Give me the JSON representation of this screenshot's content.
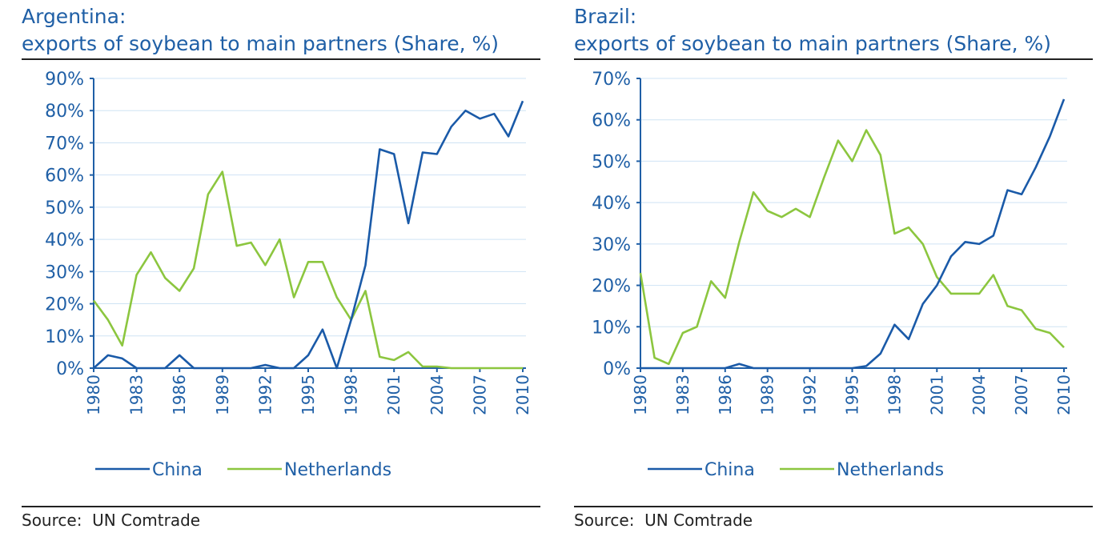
{
  "colors": {
    "china": "#1a5aa8",
    "netherlands": "#8cc63f",
    "text": "#1f5fa6",
    "grid": "#cfe3f4"
  },
  "panels": [
    {
      "title_line1": "Argentina:",
      "title_line2": "exports of soybean to main partners (Share, %)",
      "source": "Source:  UN Comtrade"
    },
    {
      "title_line1": "Brazil:",
      "title_line2": "exports of soybean to main partners (Share, %)",
      "source": "Source:  UN Comtrade"
    }
  ],
  "chart_data": [
    {
      "type": "line",
      "title": "Argentina: exports of soybean to main partners (Share, %)",
      "xlabel": "",
      "ylabel": "",
      "ylim": [
        0,
        90
      ],
      "yticks": [
        "0%",
        "10%",
        "20%",
        "30%",
        "40%",
        "50%",
        "60%",
        "70%",
        "80%",
        "90%"
      ],
      "xticks": [
        "1980",
        "1983",
        "1986",
        "1989",
        "1992",
        "1995",
        "1998",
        "2001",
        "2004",
        "2007",
        "2010"
      ],
      "grid": "horizontal",
      "legend": "bottom",
      "x": [
        1980,
        1981,
        1982,
        1983,
        1984,
        1985,
        1986,
        1987,
        1988,
        1989,
        1990,
        1991,
        1992,
        1993,
        1994,
        1995,
        1996,
        1997,
        1998,
        1999,
        2000,
        2001,
        2002,
        2003,
        2004,
        2005,
        2006,
        2007,
        2008,
        2009,
        2010
      ],
      "series": [
        {
          "name": "China",
          "color": "china",
          "values": [
            0,
            4,
            3,
            0,
            0,
            0,
            4,
            0,
            0,
            0,
            0,
            0,
            1,
            0,
            0,
            4,
            12,
            0,
            15,
            32,
            68,
            66.5,
            45,
            67,
            66.5,
            75,
            80,
            77.5,
            79,
            72,
            83
          ]
        },
        {
          "name": "Netherlands",
          "color": "netherlands",
          "values": [
            21,
            15,
            7,
            29,
            36,
            28,
            24,
            31,
            54,
            61,
            38,
            39,
            32,
            40,
            22,
            33,
            33,
            22,
            15,
            24,
            3.5,
            2.5,
            5,
            0.5,
            0.5,
            0,
            0,
            0,
            0,
            0,
            0
          ]
        }
      ]
    },
    {
      "type": "line",
      "title": "Brazil: exports of soybean to main partners (Share, %)",
      "xlabel": "",
      "ylabel": "",
      "ylim": [
        0,
        70
      ],
      "yticks": [
        "0%",
        "10%",
        "20%",
        "30%",
        "40%",
        "50%",
        "60%",
        "70%"
      ],
      "xticks": [
        "1980",
        "1983",
        "1986",
        "1989",
        "1992",
        "1995",
        "1998",
        "2001",
        "2004",
        "2007",
        "2010"
      ],
      "grid": "horizontal",
      "legend": "bottom",
      "x": [
        1980,
        1981,
        1982,
        1983,
        1984,
        1985,
        1986,
        1987,
        1988,
        1989,
        1990,
        1991,
        1992,
        1993,
        1994,
        1995,
        1996,
        1997,
        1998,
        1999,
        2000,
        2001,
        2002,
        2003,
        2004,
        2005,
        2006,
        2007,
        2008,
        2009,
        2010
      ],
      "series": [
        {
          "name": "China",
          "color": "china",
          "values": [
            0,
            0,
            0,
            0,
            0,
            0,
            0,
            1,
            0,
            0,
            0,
            0,
            0,
            0,
            0,
            0,
            0.5,
            3.5,
            10.5,
            7,
            15.5,
            20,
            27,
            30.5,
            30,
            32,
            43,
            42,
            48.5,
            56,
            65
          ]
        },
        {
          "name": "Netherlands",
          "color": "netherlands",
          "values": [
            23,
            2.5,
            1,
            8.5,
            10,
            21,
            17,
            30.5,
            42.5,
            38,
            36.5,
            38.5,
            36.5,
            46,
            55,
            50,
            57.5,
            51.5,
            32.5,
            34,
            30,
            22,
            18,
            18,
            18,
            22.5,
            15,
            14,
            9.5,
            8.5,
            5
          ]
        }
      ]
    }
  ]
}
